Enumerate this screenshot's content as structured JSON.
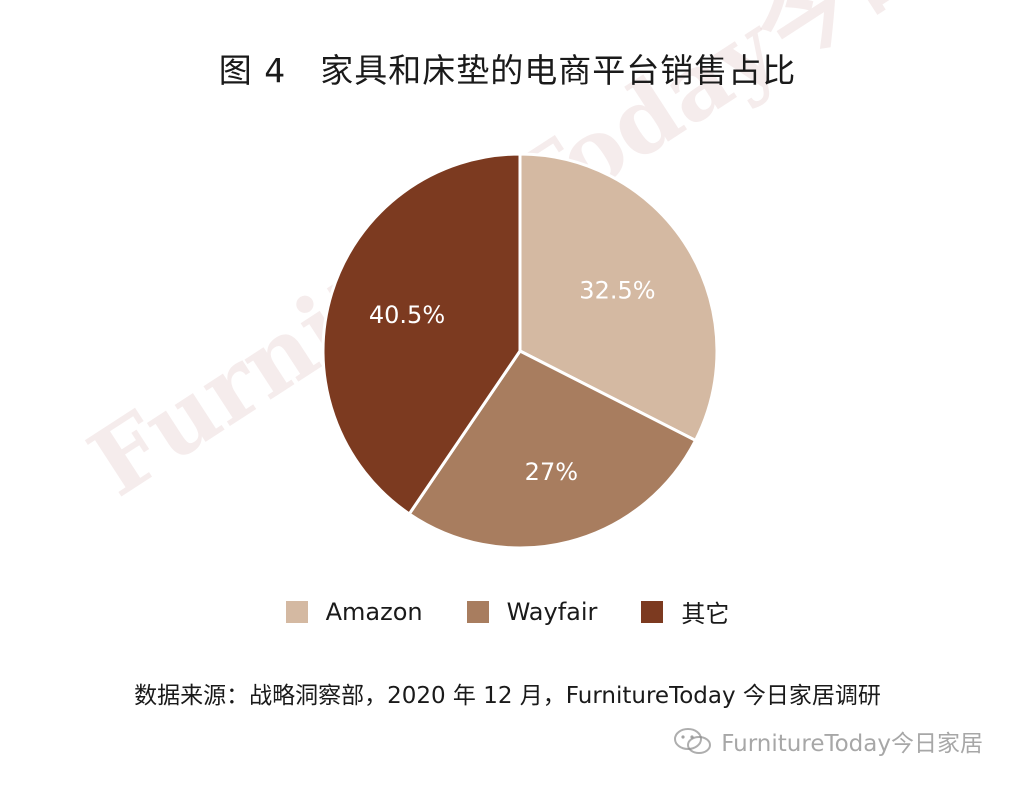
{
  "title": "图 4　家具和床垫的电商平台销售占比",
  "watermark": {
    "diagonal": "FurnitureToday今日家居",
    "footer": "FurnitureToday今日家居",
    "icon": "wechat-icon"
  },
  "source": "数据来源：战略洞察部，2020 年 12 月，FurnitureToday 今日家居调研",
  "chart_data": {
    "type": "pie",
    "title": "图 4　家具和床垫的电商平台销售占比",
    "start_angle_deg": 0,
    "direction": "clockwise",
    "legend_position": "bottom",
    "slices": [
      {
        "label": "Amazon",
        "value": 32.5,
        "display": "32.5%",
        "color": "#d4b9a2"
      },
      {
        "label": "Wayfair",
        "value": 27,
        "display": "27%",
        "color": "#a87d5f"
      },
      {
        "label": "其它",
        "value": 40.5,
        "display": "40.5%",
        "color": "#7c3a20"
      }
    ]
  }
}
